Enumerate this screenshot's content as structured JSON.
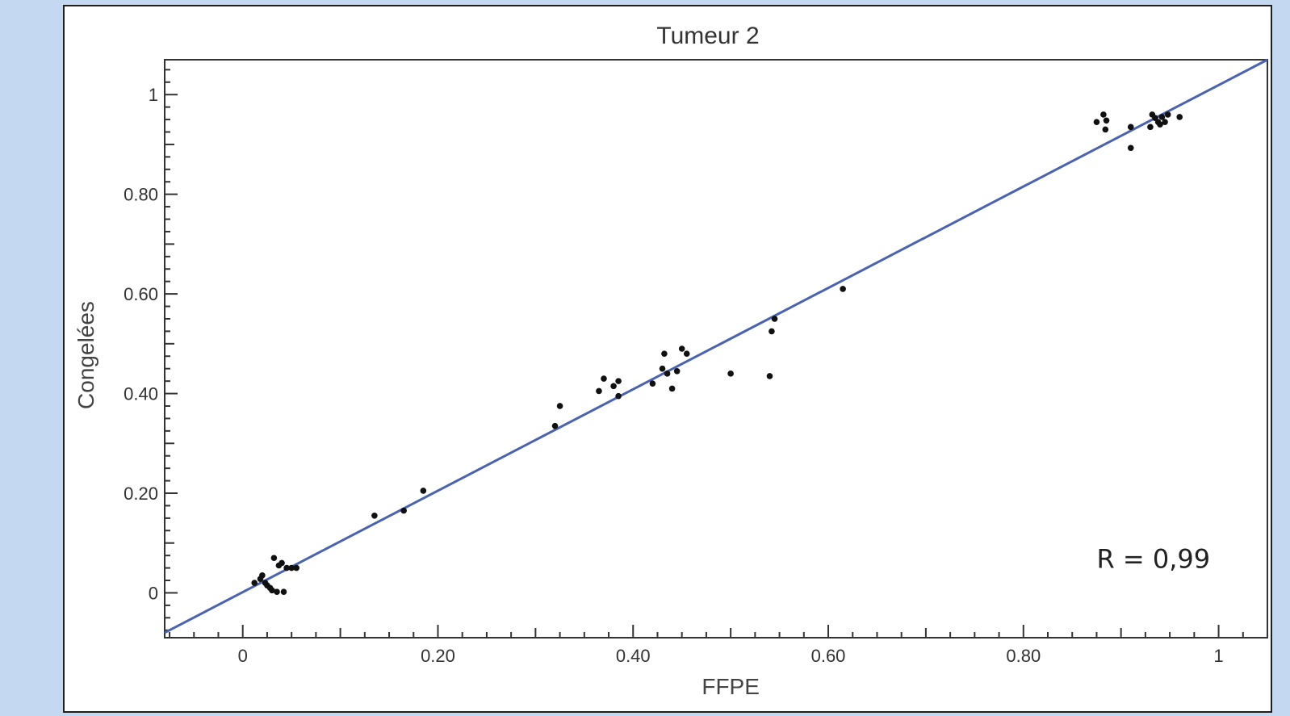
{
  "chart_data": {
    "type": "scatter",
    "title": "Tumeur 2",
    "xlabel": "FFPE",
    "ylabel": "Congelées",
    "xlim": [
      -0.08,
      1.05
    ],
    "ylim": [
      -0.09,
      1.07
    ],
    "x_ticks": [
      {
        "value": 0,
        "label": "0"
      },
      {
        "value": 0.2,
        "label": "0.20"
      },
      {
        "value": 0.4,
        "label": "0.40"
      },
      {
        "value": 0.6,
        "label": "0.60"
      },
      {
        "value": 0.8,
        "label": "0.80"
      },
      {
        "value": 1,
        "label": "1"
      }
    ],
    "y_ticks": [
      {
        "value": 0,
        "label": "0"
      },
      {
        "value": 0.2,
        "label": "0.20"
      },
      {
        "value": 0.4,
        "label": "0.40"
      },
      {
        "value": 0.6,
        "label": "0.60"
      },
      {
        "value": 0.8,
        "label": "0.80"
      },
      {
        "value": 1,
        "label": "1"
      }
    ],
    "grid": false,
    "legend": "none",
    "regression_line": {
      "points": [
        [
          -0.08,
          -0.08
        ],
        [
          1.05,
          1.07
        ]
      ],
      "color": "#4a63b0"
    },
    "annotation": "R = 0,99",
    "marker_color": "#111111",
    "series": [
      {
        "points": [
          [
            0.012,
            0.02
          ],
          [
            0.018,
            0.028
          ],
          [
            0.02,
            0.035
          ],
          [
            0.023,
            0.02
          ],
          [
            0.025,
            0.015
          ],
          [
            0.028,
            0.01
          ],
          [
            0.03,
            0.005
          ],
          [
            0.032,
            0.07
          ],
          [
            0.035,
            0.002
          ],
          [
            0.037,
            0.055
          ],
          [
            0.04,
            0.06
          ],
          [
            0.042,
            0.002
          ],
          [
            0.045,
            0.05
          ],
          [
            0.05,
            0.05
          ],
          [
            0.055,
            0.05
          ],
          [
            0.135,
            0.155
          ],
          [
            0.165,
            0.165
          ],
          [
            0.185,
            0.205
          ],
          [
            0.32,
            0.335
          ],
          [
            0.325,
            0.375
          ],
          [
            0.365,
            0.405
          ],
          [
            0.37,
            0.43
          ],
          [
            0.38,
            0.415
          ],
          [
            0.385,
            0.425
          ],
          [
            0.385,
            0.395
          ],
          [
            0.42,
            0.42
          ],
          [
            0.43,
            0.45
          ],
          [
            0.432,
            0.48
          ],
          [
            0.435,
            0.44
          ],
          [
            0.44,
            0.41
          ],
          [
            0.445,
            0.445
          ],
          [
            0.45,
            0.49
          ],
          [
            0.455,
            0.48
          ],
          [
            0.5,
            0.44
          ],
          [
            0.54,
            0.435
          ],
          [
            0.542,
            0.525
          ],
          [
            0.545,
            0.55
          ],
          [
            0.615,
            0.61
          ],
          [
            0.875,
            0.945
          ],
          [
            0.882,
            0.96
          ],
          [
            0.884,
            0.93
          ],
          [
            0.885,
            0.948
          ],
          [
            0.91,
            0.935
          ],
          [
            0.91,
            0.893
          ],
          [
            0.93,
            0.935
          ],
          [
            0.932,
            0.96
          ],
          [
            0.935,
            0.953
          ],
          [
            0.938,
            0.945
          ],
          [
            0.94,
            0.94
          ],
          [
            0.942,
            0.955
          ],
          [
            0.945,
            0.945
          ],
          [
            0.948,
            0.96
          ],
          [
            0.96,
            0.955
          ]
        ]
      }
    ]
  }
}
